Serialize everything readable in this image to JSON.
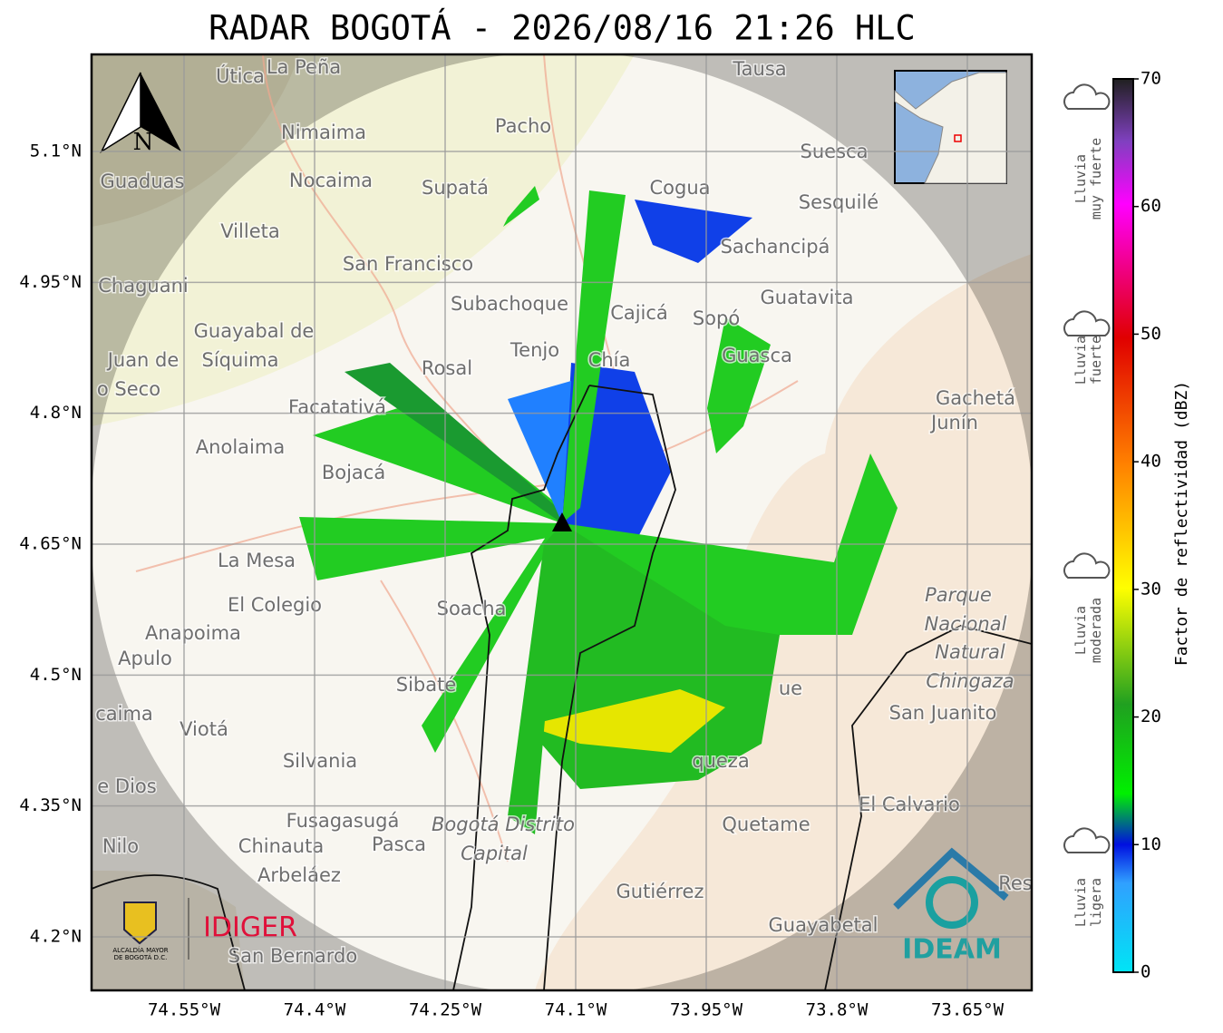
{
  "header": {
    "title": "RADAR BOGOTÁ - 2026/08/16 21:26 HLC"
  },
  "map": {
    "lat_ticks": [
      {
        "value": 5.1,
        "label": "5.1°N"
      },
      {
        "value": 4.95,
        "label": "4.95°N"
      },
      {
        "value": 4.8,
        "label": "4.8°N"
      },
      {
        "value": 4.65,
        "label": "4.65°N"
      },
      {
        "value": 4.5,
        "label": "4.5°N"
      },
      {
        "value": 4.35,
        "label": "4.35°N"
      },
      {
        "value": 4.2,
        "label": "4.2°N"
      }
    ],
    "lon_ticks": [
      {
        "value": -74.55,
        "label": "74.55°W"
      },
      {
        "value": -74.4,
        "label": "74.4°W"
      },
      {
        "value": -74.25,
        "label": "74.25°W"
      },
      {
        "value": -74.1,
        "label": "74.1°W"
      },
      {
        "value": -73.95,
        "label": "73.95°W"
      },
      {
        "value": -73.8,
        "label": "73.8°W"
      },
      {
        "value": -73.65,
        "label": "73.65°W"
      }
    ],
    "north": "N",
    "places": [
      "Útica",
      "La Peña",
      "Tausa",
      "Pacho",
      "Nimaima",
      "Guaduas",
      "Nocaima",
      "Supatá",
      "Cogua",
      "Suesca",
      "Sesquilé",
      "Villeta",
      "San Francisco",
      "Sachancipá",
      "Chaguani",
      "Subachoque",
      "Cajicá",
      "Sopó",
      "Guatavita",
      "Guayabal de",
      "Síquima",
      "Tenjo",
      "Chía",
      "Guasca",
      "Juan de",
      "o Seco",
      "Rosal",
      "Facatativá",
      "Gachetá",
      "Junín",
      "Anolaima",
      "Bojacá",
      "La Mesa",
      "El Colegio",
      "Soacha",
      "Parque",
      "Nacional",
      "Natural",
      "Chingaza",
      "Anapoima",
      "Apulo",
      "Sibaté",
      "San Juanito",
      "caima",
      "Viotá",
      "Silvania",
      "e Dios",
      "queza",
      "ue",
      "El Calvario",
      "Fusagasugá",
      "Bogotá Distrito",
      "Capital",
      "Quetame",
      "Nilo",
      "Chinauta",
      "Pasca",
      "Arbeláez",
      "Gutiérrez",
      "Res",
      "Guayabetal",
      "San Bernardo"
    ],
    "logos": {
      "alcaldia": [
        "ALCALDÍA MAYOR",
        "DE BOGOTÁ D.C."
      ],
      "idiger": "IDIGER",
      "ideam": "IDEAM"
    }
  },
  "colorbar": {
    "label": "Factor de reflectividad (dBZ)",
    "range": [
      0,
      70
    ],
    "ticks": [
      0,
      10,
      20,
      30,
      40,
      50,
      60,
      70
    ]
  },
  "legend": [
    [
      "Lluvia",
      "muy fuerte"
    ],
    [
      "Lluvia",
      "fuerte"
    ],
    [
      "Lluvia",
      "moderada"
    ],
    [
      "Lluvia",
      "ligera"
    ]
  ]
}
